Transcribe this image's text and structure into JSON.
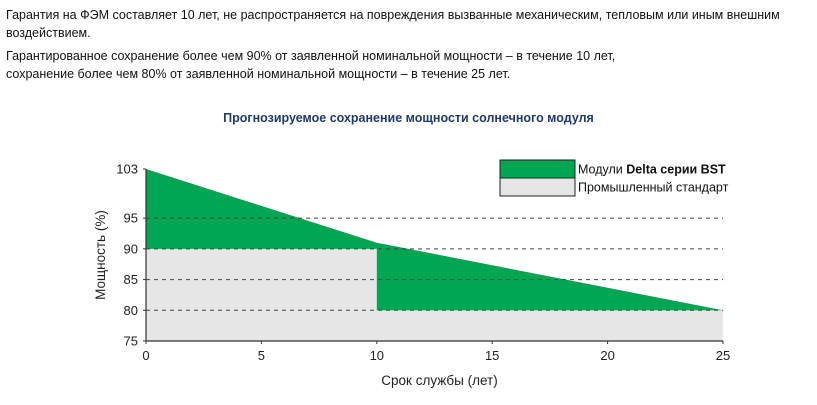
{
  "intro": {
    "line1": "Гарантия на ФЭМ составляет 10 лет, не распространяется на повреждения вызванные механическим, тепловым или иным внешним воздействием.",
    "line2": "Гарантированное сохранение более чем 90% от заявленной номинальной мощности – в течение 10 лет,",
    "line3": "сохранение более чем 80% от заявленной номинальной мощности – в течение 25 лет."
  },
  "colors": {
    "delta_green": "#00a651",
    "industry_gray": "#e6e6e6",
    "grid_dash": "#444444",
    "axis": "#333333",
    "title_blue": "#1f3a6b"
  },
  "chart_data": {
    "type": "area",
    "title": "Прогнозируемое сохранение мощности солнечного модуля",
    "xlabel": "Срок службы (лет)",
    "ylabel": "Мощность (%)",
    "xlim": [
      0,
      25
    ],
    "ylim": [
      75,
      103
    ],
    "x_ticks": [
      "0",
      "5",
      "10",
      "15",
      "20",
      "25"
    ],
    "x_tick_values": [
      0,
      5,
      10,
      15,
      20,
      25
    ],
    "y_ticks": [
      "75",
      "80",
      "85",
      "90",
      "95",
      "103"
    ],
    "y_tick_values": [
      75,
      80,
      85,
      90,
      95,
      103
    ],
    "dashed_gridlines": [
      80,
      85,
      90,
      95
    ],
    "legend_position": "top-right",
    "series": [
      {
        "name_prefix": "Модули ",
        "name_bold": "Delta серии BST",
        "color": "#00a651",
        "x": [
          0,
          10,
          25
        ],
        "y": [
          103,
          91,
          80
        ]
      },
      {
        "name": "Промышленный стандарт",
        "color": "#e6e6e6",
        "x": [
          0,
          10,
          10,
          25
        ],
        "y": [
          90,
          90,
          80,
          80
        ]
      }
    ]
  }
}
